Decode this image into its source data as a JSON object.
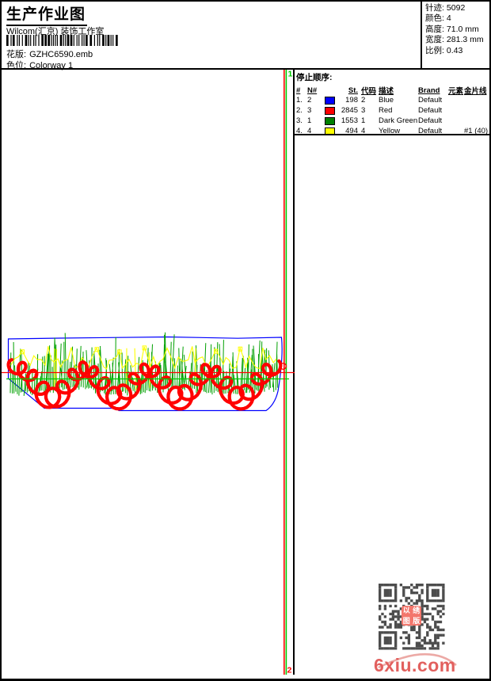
{
  "header": {
    "title": "生产作业图",
    "subtitle": "Wilcom(汇京) 装饰工作室",
    "design_label": "花版:",
    "design_value": "GZHC6590.emb",
    "colorway_label": "色位:",
    "colorway_value": "Colorway 1"
  },
  "info": {
    "rows": [
      {
        "label": "针迹:",
        "value": "5092"
      },
      {
        "label": "颜色:",
        "value": "4"
      },
      {
        "label": "高度:",
        "value": "71.0 mm"
      },
      {
        "label": "宽度:",
        "value": "281.3 mm"
      },
      {
        "label": "比例:",
        "value": "0.43"
      }
    ]
  },
  "stops": {
    "title": "停止顺序:",
    "columns": [
      "#",
      "N#",
      "St.",
      "代码",
      "描述",
      "Brand",
      "元素",
      "金片线"
    ],
    "rows": [
      {
        "stop": "1.",
        "needle": "2",
        "swatch": "#0000ff",
        "stitches": "198",
        "code": "2",
        "desc": "Blue",
        "brand": "Default",
        "element": "",
        "sequin": ""
      },
      {
        "stop": "2.",
        "needle": "3",
        "swatch": "#ff0000",
        "stitches": "2845",
        "code": "3",
        "desc": "Red",
        "brand": "Default",
        "element": "",
        "sequin": ""
      },
      {
        "stop": "3.",
        "needle": "1",
        "swatch": "#008000",
        "stitches": "1553",
        "code": "1",
        "desc": "Dark Green",
        "brand": "Default",
        "element": "",
        "sequin": ""
      },
      {
        "stop": "4.",
        "needle": "4",
        "swatch": "#ffff00",
        "stitches": "494",
        "code": "4",
        "desc": "Yellow",
        "brand": "Default",
        "element": "",
        "sequin": "#1 (40)"
      }
    ]
  },
  "markers": {
    "start": "1",
    "end": "2"
  },
  "design": {
    "colors": {
      "blue": "#0000ff",
      "red": "#ff0000",
      "green": "#00a000",
      "yellow": "#ffff00",
      "line_green": "#00cc00",
      "qr": "#4d4d4d"
    }
  },
  "stamp": {
    "chars": [
      "以",
      "绣",
      "图",
      "版"
    ],
    "bg": "#f3766c"
  },
  "watermark": {
    "text": "6xiu.com",
    "color": "#e2605e",
    "swoosh_color": "#eca9a5"
  }
}
